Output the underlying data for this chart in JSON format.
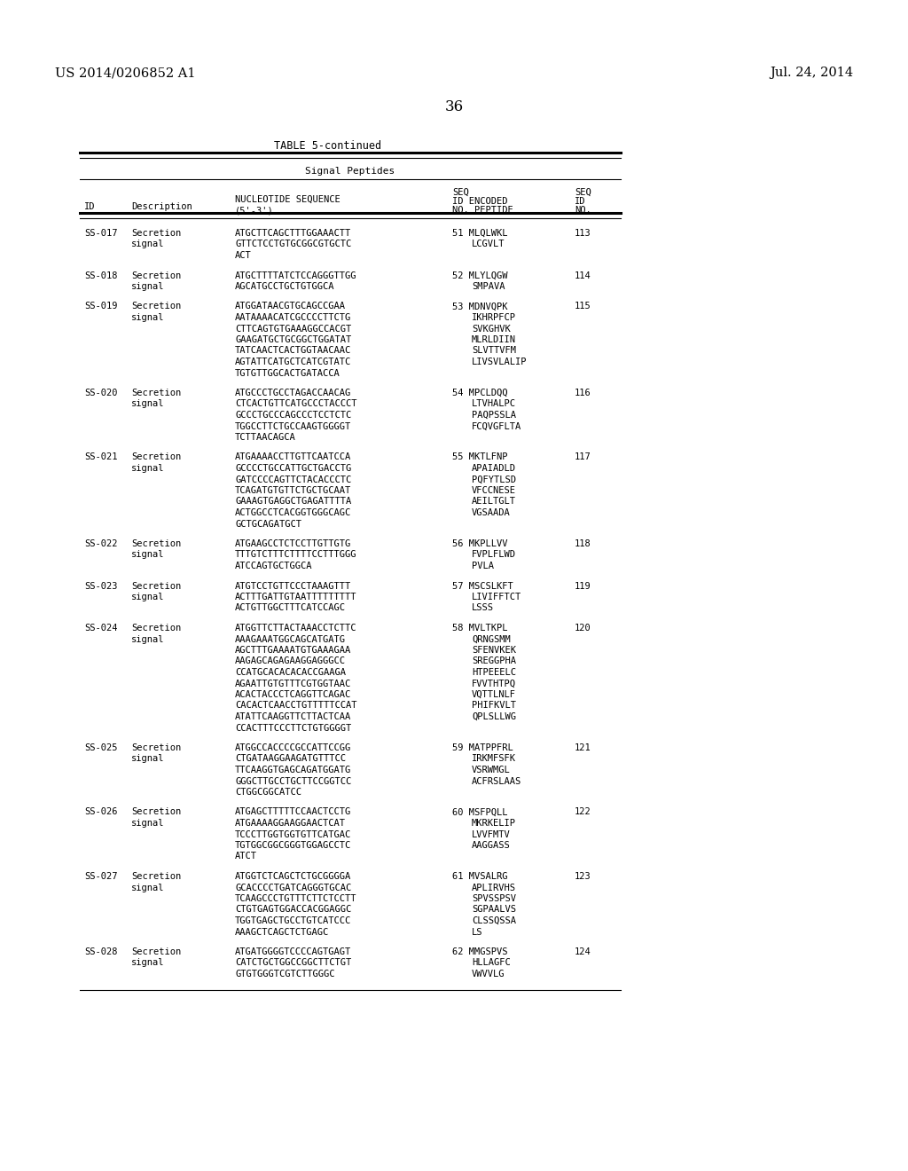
{
  "patent_number": "US 2014/0206852 A1",
  "date": "Jul. 24, 2014",
  "page_number": "36",
  "table_title": "TABLE 5-continued",
  "table_subtitle": "Signal Peptides",
  "rows": [
    {
      "id": "SS-017",
      "desc": [
        "Secretion",
        "signal"
      ],
      "nucleotide": [
        "ATGCTTCAGCTTTGGAAACTT",
        "GTTCTCCTGTGCGGCGTGCTC",
        "ACT"
      ],
      "seq_num": "51",
      "peptide": [
        "MLQLWKL",
        "LCGVLT"
      ],
      "seq_no": "113"
    },
    {
      "id": "SS-018",
      "desc": [
        "Secretion",
        "signal"
      ],
      "nucleotide": [
        "ATGCTTTTATCTCCAGGGTTGG",
        "AGCATGCCTGCTGTGGCA"
      ],
      "seq_num": "52",
      "peptide": [
        "MLYLQGW",
        "SMPAVA"
      ],
      "seq_no": "114"
    },
    {
      "id": "SS-019",
      "desc": [
        "Secretion",
        "signal"
      ],
      "nucleotide": [
        "ATGGATAACGTGCAGCCGAA",
        "AATAAAACATCGCCCCTТCTG",
        "CTTCAGTGTGAAAGGCCACGT",
        "GAAGATGCTGCGGCTGGATAT",
        "TATCAACTCACTGGTAACAAC",
        "AGTATTCATGCTCATCGTATC",
        "TGTGTTGGCACTGATACCA"
      ],
      "seq_num": "53",
      "peptide": [
        "MDNVQPK",
        "IKHRPFCP",
        "SVKGHVK",
        "MLRLDIIN",
        "SLVTTVFM",
        "LIVSVLALIP"
      ],
      "seq_no": "115"
    },
    {
      "id": "SS-020",
      "desc": [
        "Secretion",
        "signal"
      ],
      "nucleotide": [
        "ATGCCCTGCCTAGACCAACAG",
        "CTCACTGTTCATGCCCTACCCT",
        "GCCCTGCCCAGCCCTCCTCTC",
        "TGGCCTTCTGCCAAGTGGGGT",
        "TCTTAACAGCA"
      ],
      "seq_num": "54",
      "peptide": [
        "MPCLDQQ",
        "LTVHALPC",
        "PAQPSSLA",
        "FCQVGFLTA"
      ],
      "seq_no": "116"
    },
    {
      "id": "SS-021",
      "desc": [
        "Secretion",
        "signal"
      ],
      "nucleotide": [
        "ATGAAAACCTTGTTCAATCCA",
        "GCCCCTGCCATTGCTGACCTG",
        "GATCCCCAGTTCTACACCCTC",
        "TCAGATGTGTTCTGCTGCAAT",
        "GAAAGTGAGGCTGAGATTTTA",
        "ACTGGCCTCACGGTGGGCAGC",
        "GCTGCAGATGCT"
      ],
      "seq_num": "55",
      "peptide": [
        "MKTLFNP",
        "APAIADLD",
        "PQFYTLSD",
        "VFCCNESE",
        "AEILTGLT",
        "VGSAADA"
      ],
      "seq_no": "117"
    },
    {
      "id": "SS-022",
      "desc": [
        "Secretion",
        "signal"
      ],
      "nucleotide": [
        "ATGAAGCCTCTCCTTGTTGTG",
        "TTTGTCTTTCTTTTCCTTTGGG",
        "ATCCAGTGCTGGCA"
      ],
      "seq_num": "56",
      "peptide": [
        "MKPLLVV",
        "FVPLFLWD",
        "PVLA"
      ],
      "seq_no": "118"
    },
    {
      "id": "SS-023",
      "desc": [
        "Secretion",
        "signal"
      ],
      "nucleotide": [
        "ATGTCCTGTTCCCTAAAGTTT",
        "ACTTTGATTGTAATTTTTTTTT",
        "ACTGTTGGCTTTCATCCAGC"
      ],
      "seq_num": "57",
      "peptide": [
        "MSCSLKFT",
        "LIVIFFTCT",
        "LSSS"
      ],
      "seq_no": "119"
    },
    {
      "id": "SS-024",
      "desc": [
        "Secretion",
        "signal"
      ],
      "nucleotide": [
        "ATGGTTCTTACTAAACCTCTTC",
        "AAAGAAATGGCAGCATGATG",
        "AGCTTTGAAAATGTGAAAGAA",
        "AAGAGCAGAGAAGGAGGGCC",
        "CCATGCACACACACCGAAGA",
        "AGAATTGTGTTTCGTGGTAAC",
        "ACACTACCCTCAGGTTCAGAC",
        "CACACTCAACCTGTTTTTCCAT",
        "ATATTCAAGGTTCTTACTCAA",
        "CCACTTTCCCTTCTGTGGGGT"
      ],
      "seq_num": "58",
      "peptide": [
        "MVLTKPL",
        "QRNGSMM",
        "SFENVKEK",
        "SREGGPHA",
        "HTPEEELC",
        "FVVTHTPQ",
        "VQTTLNLF",
        "PHIFKVLT",
        "QPLSLLWG"
      ],
      "seq_no": "120"
    },
    {
      "id": "SS-025",
      "desc": [
        "Secretion",
        "signal"
      ],
      "nucleotide": [
        "ATGGCCACCCCGCCATTCCGG",
        "CTGATAAGGAAGATGTTTCC",
        "TTCAAGGTGAGCAGATGGATG",
        "GGGCTTGCCTGCTTCCGGTCC",
        "CTGGCGGCATCC"
      ],
      "seq_num": "59",
      "peptide": [
        "MATPPFRL",
        "IRKMFSFK",
        "VSRWMGL",
        "ACFRSLAAS"
      ],
      "seq_no": "121"
    },
    {
      "id": "SS-026",
      "desc": [
        "Secretion",
        "signal"
      ],
      "nucleotide": [
        "ATGAGCTTTTTCCAACTCCTG",
        "ATGAAAAGGAAGGAACTCAT",
        "TCCCTTGGTGGTGTTCATGAC",
        "TGTGGCGGCGGGTGGAGCCTC",
        "ATCT"
      ],
      "seq_num": "60",
      "peptide": [
        "MSFPQLL",
        "MKRKELIP",
        "LVVFMTV",
        "AAGGASS"
      ],
      "seq_no": "122"
    },
    {
      "id": "SS-027",
      "desc": [
        "Secretion",
        "signal"
      ],
      "nucleotide": [
        "ATGGTCTCAGCTCTGCGGGGA",
        "GCACCCCTGATCAGGGTGCAC",
        "TCAAGCCCTGTTTCTTCTCCTT",
        "CTGTGAGTGGACCACGGAGGC",
        "TGGTGAGCTGCCTGTCATCCC",
        "AAAGCTCAGCTCTGAGC"
      ],
      "seq_num": "61",
      "peptide": [
        "MVSALRG",
        "APLIRVHS",
        "SPVSSPSV",
        "SGPAALVS",
        "CLSSQSSA",
        "LS"
      ],
      "seq_no": "123"
    },
    {
      "id": "SS-028",
      "desc": [
        "Secretion",
        "signal"
      ],
      "nucleotide": [
        "ATGATGGGGTCCCCAGTGAGT",
        "CATCTGCTGGCCGGCTTCTGT",
        "GTGTGGGTCGTCTTGGGC"
      ],
      "seq_num": "62",
      "peptide": [
        "MMGSPVS",
        "HLLAGFC",
        "VWVVLG"
      ],
      "seq_no": "124"
    }
  ]
}
